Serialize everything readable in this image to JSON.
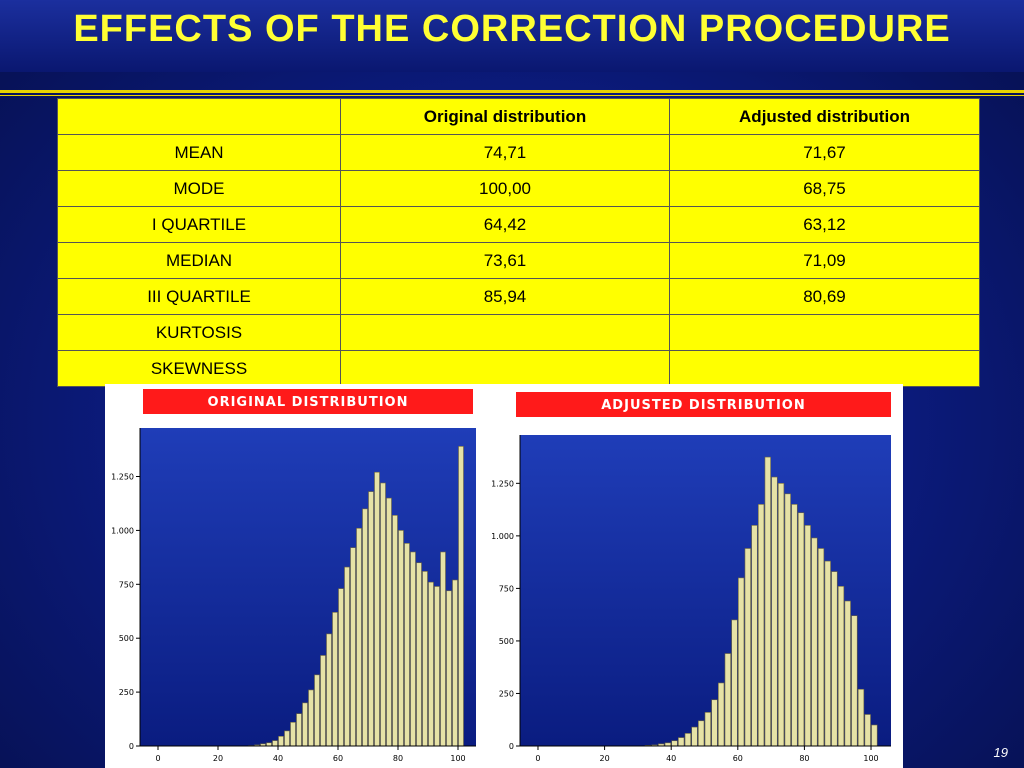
{
  "title": "EFFECTS OF THE CORRECTION PROCEDURE",
  "page_number": "19",
  "table": {
    "columns": [
      "Original distribution",
      "Adjusted distribution"
    ],
    "rows": [
      {
        "label": "MEAN",
        "original": "74,71",
        "adjusted": "71,67"
      },
      {
        "label": "MODE",
        "original": "100,00",
        "adjusted": "68,75"
      },
      {
        "label": "I QUARTILE",
        "original": "64,42",
        "adjusted": "63,12"
      },
      {
        "label": "MEDIAN",
        "original": "73,61",
        "adjusted": "71,09"
      },
      {
        "label": "III QUARTILE",
        "original": "85,94",
        "adjusted": "80,69"
      },
      {
        "label": "KURTOSIS"
      },
      {
        "label": "SKEWNESS"
      }
    ]
  },
  "chart_data": [
    {
      "type": "histogram",
      "title": "ORIGINAL DISTRIBUTION",
      "color": "#e6e2a6",
      "bins": [
        30,
        32,
        34,
        36,
        38,
        40,
        42,
        44,
        46,
        48,
        50,
        52,
        54,
        56,
        58,
        60,
        62,
        64,
        66,
        68,
        70,
        72,
        74,
        76,
        78,
        80,
        82,
        84,
        86,
        88,
        90,
        92,
        94,
        96,
        98,
        100,
        102
      ],
      "counts": [
        2,
        5,
        10,
        15,
        25,
        45,
        70,
        110,
        150,
        200,
        260,
        330,
        420,
        520,
        620,
        730,
        830,
        920,
        1010,
        1100,
        1180,
        1270,
        1220,
        1150,
        1070,
        1000,
        940,
        900,
        850,
        810,
        760,
        740,
        900,
        720,
        770,
        1390
      ],
      "xlim": [
        -6,
        106
      ],
      "ylim": [
        0,
        1475
      ],
      "xticks": [
        0,
        20,
        40,
        60,
        80,
        100
      ],
      "yticks": [
        0,
        250,
        500,
        750,
        {
          "value": 1000,
          "label": "1.000"
        },
        {
          "value": 1250,
          "label": "1.250"
        }
      ]
    },
    {
      "type": "histogram",
      "title": "ADJUSTED DISTRIBUTION",
      "color": "#e6e2a6",
      "bins": [
        32,
        34,
        36,
        38,
        40,
        42,
        44,
        46,
        48,
        50,
        52,
        54,
        56,
        58,
        60,
        62,
        64,
        66,
        68,
        70,
        72,
        74,
        76,
        78,
        80,
        82,
        84,
        86,
        88,
        90,
        92,
        94,
        96,
        98,
        100,
        102
      ],
      "counts": [
        3,
        5,
        10,
        15,
        25,
        40,
        60,
        90,
        120,
        160,
        220,
        300,
        440,
        600,
        800,
        940,
        1050,
        1150,
        1375,
        1280,
        1250,
        1200,
        1150,
        1110,
        1050,
        990,
        940,
        880,
        830,
        760,
        690,
        620,
        270,
        150,
        100
      ],
      "xlim": [
        -5.4,
        106
      ],
      "ylim": [
        0,
        1480
      ],
      "xticks": [
        0,
        20,
        40,
        60,
        80,
        100
      ],
      "yticks": [
        0,
        250,
        500,
        750,
        {
          "value": 1000,
          "label": "1.000"
        },
        {
          "value": 1250,
          "label": "1.250"
        }
      ]
    }
  ]
}
